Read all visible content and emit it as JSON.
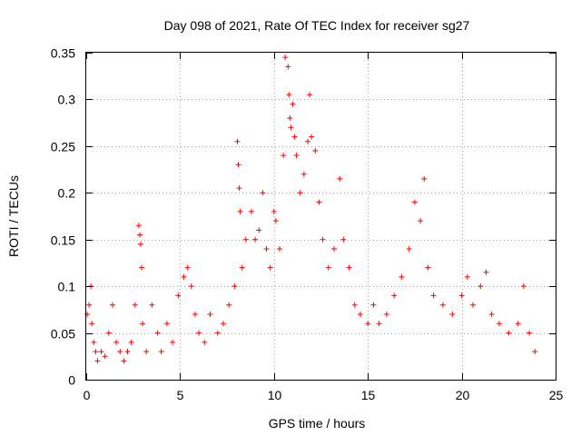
{
  "chart_data": {
    "type": "scatter",
    "title": "Day 098 of 2021, Rate Of TEC Index for receiver sg27",
    "xlabel": "GPS time / hours",
    "ylabel": "ROTI / TECUs",
    "xlim": [
      0,
      25
    ],
    "ylim": [
      0,
      0.35
    ],
    "x_ticks": [
      0,
      5,
      10,
      15,
      20,
      25
    ],
    "y_ticks": [
      0,
      0.05,
      0.1,
      0.15,
      0.2,
      0.25,
      0.3,
      0.35
    ],
    "x_tick_labels": [
      "0",
      "5",
      "10",
      "15",
      "20",
      "25"
    ],
    "y_tick_labels": [
      "0",
      "0.05",
      "0.1",
      "0.15",
      "0.2",
      "0.25",
      "0.3",
      "0.35"
    ],
    "grid": true,
    "marker": "plus",
    "color": "#ff0000",
    "series": [
      {
        "points": [
          [
            0.05,
            0.07
          ],
          [
            0.15,
            0.08
          ],
          [
            0.25,
            0.1
          ],
          [
            0.3,
            0.06
          ],
          [
            0.4,
            0.04
          ],
          [
            0.5,
            0.03
          ],
          [
            0.6,
            0.02
          ],
          [
            0.8,
            0.03
          ],
          [
            1.0,
            0.025
          ],
          [
            1.2,
            0.05
          ],
          [
            1.4,
            0.08
          ],
          [
            1.6,
            0.04
          ],
          [
            1.8,
            0.03
          ],
          [
            2.0,
            0.02
          ],
          [
            2.2,
            0.03
          ],
          [
            2.4,
            0.04
          ],
          [
            2.6,
            0.08
          ],
          [
            2.8,
            0.165
          ],
          [
            2.85,
            0.155
          ],
          [
            2.9,
            0.145
          ],
          [
            2.95,
            0.12
          ],
          [
            3.0,
            0.06
          ],
          [
            3.2,
            0.03
          ],
          [
            3.5,
            0.08
          ],
          [
            3.8,
            0.05
          ],
          [
            4.0,
            0.03
          ],
          [
            4.3,
            0.06
          ],
          [
            4.6,
            0.04
          ],
          [
            4.9,
            0.09
          ],
          [
            5.2,
            0.11
          ],
          [
            5.4,
            0.12
          ],
          [
            5.6,
            0.1
          ],
          [
            5.8,
            0.07
          ],
          [
            6.0,
            0.05
          ],
          [
            6.3,
            0.04
          ],
          [
            6.6,
            0.07
          ],
          [
            7.0,
            0.05
          ],
          [
            7.3,
            0.06
          ],
          [
            7.6,
            0.08
          ],
          [
            7.9,
            0.1
          ],
          [
            8.05,
            0.255
          ],
          [
            8.1,
            0.23
          ],
          [
            8.15,
            0.205
          ],
          [
            8.2,
            0.18
          ],
          [
            8.3,
            0.12
          ],
          [
            8.5,
            0.15
          ],
          [
            8.8,
            0.18
          ],
          [
            9.0,
            0.15
          ],
          [
            9.2,
            0.16
          ],
          [
            9.4,
            0.2
          ],
          [
            9.6,
            0.14
          ],
          [
            9.8,
            0.12
          ],
          [
            10.0,
            0.18
          ],
          [
            10.1,
            0.17
          ],
          [
            10.3,
            0.14
          ],
          [
            10.5,
            0.24
          ],
          [
            10.6,
            0.345
          ],
          [
            10.75,
            0.335
          ],
          [
            10.8,
            0.305
          ],
          [
            10.85,
            0.28
          ],
          [
            10.9,
            0.27
          ],
          [
            11.0,
            0.295
          ],
          [
            11.1,
            0.26
          ],
          [
            11.2,
            0.24
          ],
          [
            11.4,
            0.2
          ],
          [
            11.6,
            0.22
          ],
          [
            11.8,
            0.255
          ],
          [
            11.9,
            0.305
          ],
          [
            12.0,
            0.26
          ],
          [
            12.2,
            0.245
          ],
          [
            12.4,
            0.19
          ],
          [
            12.6,
            0.15
          ],
          [
            12.9,
            0.12
          ],
          [
            13.2,
            0.14
          ],
          [
            13.5,
            0.215
          ],
          [
            13.7,
            0.15
          ],
          [
            14.0,
            0.12
          ],
          [
            14.3,
            0.08
          ],
          [
            14.6,
            0.07
          ],
          [
            15.0,
            0.06
          ],
          [
            15.3,
            0.08
          ],
          [
            15.6,
            0.06
          ],
          [
            16.0,
            0.07
          ],
          [
            16.4,
            0.09
          ],
          [
            16.8,
            0.11
          ],
          [
            17.2,
            0.14
          ],
          [
            17.5,
            0.19
          ],
          [
            17.8,
            0.17
          ],
          [
            18.0,
            0.215
          ],
          [
            18.2,
            0.12
          ],
          [
            18.5,
            0.09
          ],
          [
            19.0,
            0.08
          ],
          [
            19.5,
            0.07
          ],
          [
            20.0,
            0.09
          ],
          [
            20.3,
            0.11
          ],
          [
            20.6,
            0.08
          ],
          [
            21.0,
            0.1
          ],
          [
            21.3,
            0.115
          ],
          [
            21.6,
            0.07
          ],
          [
            22.0,
            0.06
          ],
          [
            22.5,
            0.05
          ],
          [
            23.0,
            0.06
          ],
          [
            23.3,
            0.1
          ],
          [
            23.6,
            0.05
          ],
          [
            23.9,
            0.03
          ]
        ]
      }
    ]
  }
}
